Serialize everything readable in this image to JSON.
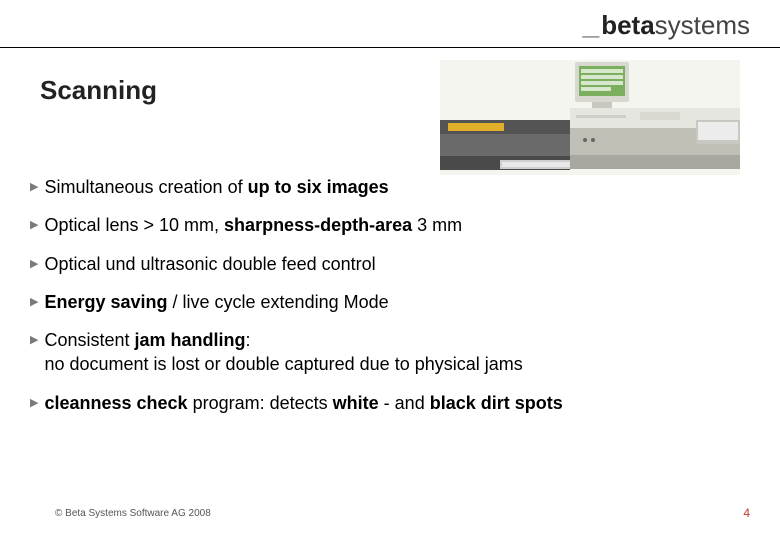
{
  "logo": {
    "prefix": "_",
    "bold": "beta",
    "light": "systems"
  },
  "title": "Scanning",
  "bullets": [
    {
      "html": "Simultaneous creation of <b>up to six images</b>"
    },
    {
      "html": "Optical lens > 10 mm, <b>sharpness-depth-area</b> 3 mm"
    },
    {
      "html": "Optical und ultrasonic double feed control"
    },
    {
      "html": "<b>Energy saving</b> / live cycle extending Mode"
    },
    {
      "html": "Consistent <b>jam handling</b>:<br>no document is lost or double captured due to physical jams"
    },
    {
      "html": "<b>cleanness check</b> program: detects <b>white</b> - and <b>black dirt spots</b>"
    }
  ],
  "footer": {
    "copyright": "© Beta Systems Software AG 2008",
    "page": "4"
  },
  "scanner_svg": {
    "bg": "#f5f5f0",
    "monitor_body": "#d8d8d0",
    "monitor_screen": "#7cae5f",
    "screen_rows": "#d7e7cc",
    "base_top": "#545454",
    "base_mid": "#6a6a6a",
    "base_bottom": "#4a4a4a",
    "yellow": "#e0af2a",
    "right_body_top": "#e6e6e0",
    "right_body_shadow": "#bfbfb6",
    "tray_outer": "#c8c8c0",
    "tray_inner": "#ececec"
  }
}
